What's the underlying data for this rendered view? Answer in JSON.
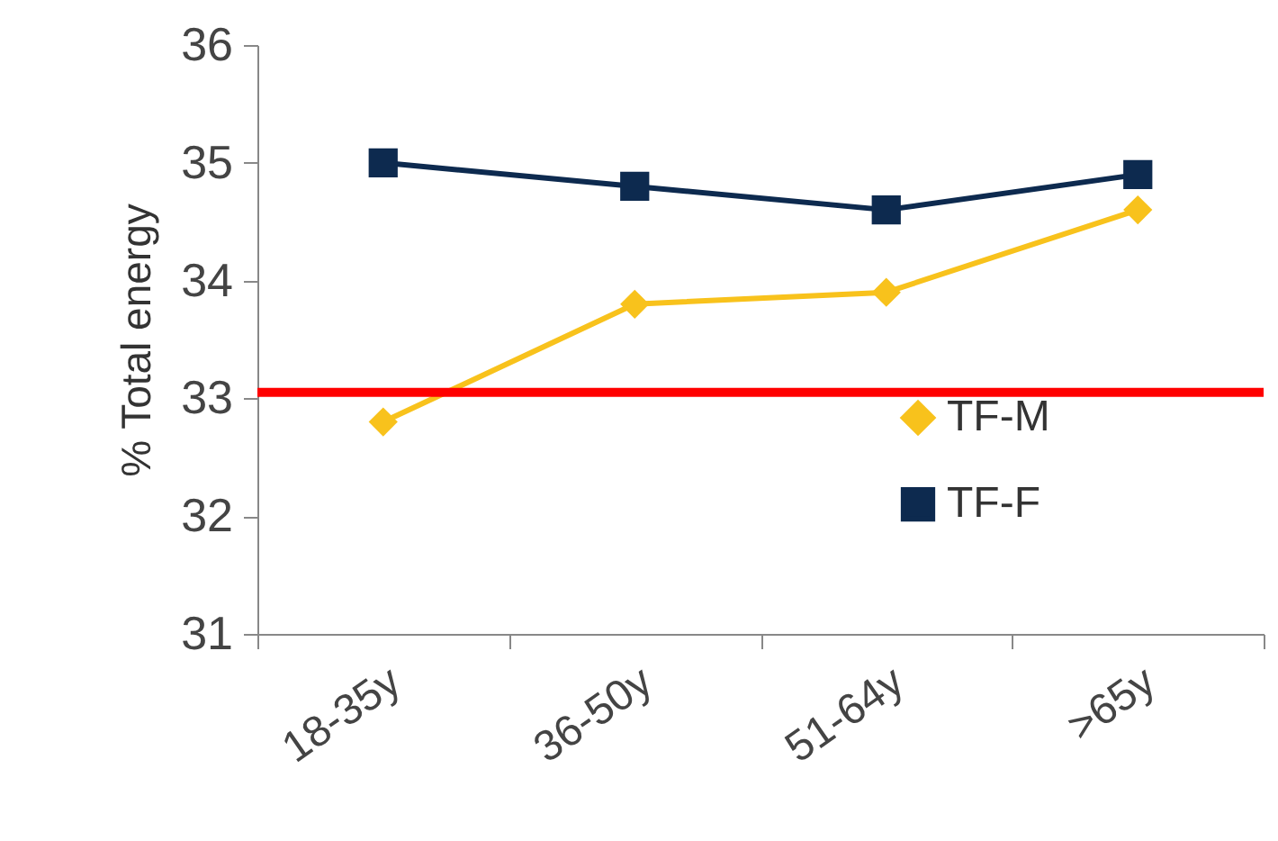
{
  "chart_data": {
    "type": "line",
    "ylabel": "% Total energy",
    "categories": [
      "18-35y",
      "36-50y",
      "51-64y",
      ">65y"
    ],
    "series": [
      {
        "name": "TF-M",
        "color": "#f8c21c",
        "marker": "diamond",
        "values": [
          32.8,
          33.8,
          33.9,
          34.6
        ]
      },
      {
        "name": "TF-F",
        "color": "#0d2a4f",
        "marker": "square",
        "values": [
          35.0,
          34.8,
          34.6,
          34.9
        ]
      }
    ],
    "ylim": [
      31,
      36
    ],
    "yticks": [
      31,
      32,
      33,
      34,
      35,
      36
    ],
    "grid": false,
    "legend": "right",
    "ref_lines": [
      {
        "axis": "y",
        "value": 33.05,
        "color": "#ff0000"
      }
    ]
  }
}
